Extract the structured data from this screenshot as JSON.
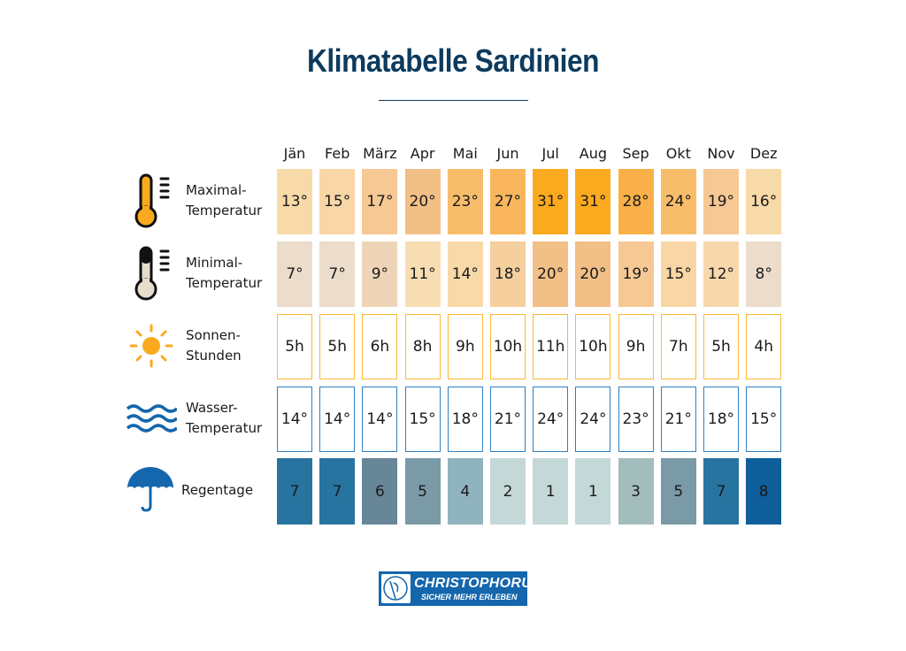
{
  "title": "Klimatabelle Sardinien",
  "logo": {
    "name": "CHRISTOPHORUS",
    "tagline": "SICHER MEHR ERLEBEN"
  },
  "chart_data": {
    "type": "table",
    "title": "Klimatabelle Sardinien",
    "categories": [
      "Jän",
      "Feb",
      "März",
      "Apr",
      "Mai",
      "Jun",
      "Jul",
      "Aug",
      "Sep",
      "Okt",
      "Nov",
      "Dez"
    ],
    "rows": [
      {
        "label1": "Maximal-",
        "label2": "Temperatur",
        "icon": "thermometer-hot-icon",
        "unit": "°",
        "values": [
          13,
          15,
          17,
          20,
          23,
          27,
          31,
          31,
          28,
          24,
          19,
          16
        ],
        "colors": [
          "#f8d9a8",
          "#f8d6a5",
          "#f6c894",
          "#f2bf86",
          "#f8bd6b",
          "#f9b55c",
          "#fbaa1f",
          "#fbaa1f",
          "#f9b048",
          "#f8bd6b",
          "#f6c894",
          "#f8d9a8"
        ],
        "style": "fill"
      },
      {
        "label1": "Minimal-",
        "label2": "Temperatur",
        "icon": "thermometer-cold-icon",
        "unit": "°",
        "values": [
          7,
          7,
          9,
          11,
          14,
          18,
          20,
          20,
          19,
          15,
          12,
          8
        ],
        "colors": [
          "#ebdccb",
          "#ebdccb",
          "#efd5b7",
          "#f8ddb3",
          "#f8d9a8",
          "#f6cf9e",
          "#f2bf86",
          "#f2bf86",
          "#f6c894",
          "#f8d6a5",
          "#f6d8ac",
          "#ebdccb"
        ],
        "style": "fill"
      },
      {
        "label1": "Sonnen-",
        "label2": "Stunden",
        "icon": "sun-icon",
        "unit": "h",
        "values": [
          5,
          5,
          6,
          8,
          9,
          10,
          11,
          10,
          9,
          7,
          5,
          4
        ],
        "border": "#fbb931",
        "style": "outline"
      },
      {
        "label1": "Wasser-",
        "label2": "Temperatur",
        "icon": "waves-icon",
        "unit": "°",
        "values": [
          14,
          14,
          14,
          15,
          18,
          21,
          24,
          24,
          23,
          21,
          18,
          15
        ],
        "border": "#2f7fc0",
        "style": "outline"
      },
      {
        "label1": "Regentage",
        "label2": "",
        "icon": "umbrella-icon",
        "unit": "",
        "values": [
          7,
          7,
          6,
          5,
          4,
          2,
          1,
          1,
          3,
          5,
          7,
          8
        ],
        "colors": [
          "#2874a0",
          "#2874a0",
          "#678698",
          "#7a9aa7",
          "#8fb3bf",
          "#c4d8d8",
          "#c4d8d8",
          "#c4d8d8",
          "#a3bdbd",
          "#7a9aa7",
          "#2874a0",
          "#0e5f9b"
        ],
        "style": "fill"
      }
    ]
  }
}
